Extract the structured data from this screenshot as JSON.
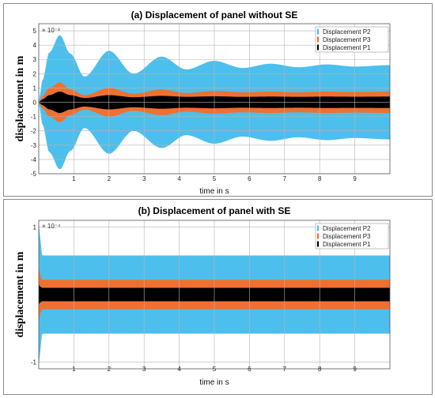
{
  "chart_data": [
    {
      "type": "area",
      "title": "(a) Displacement of panel without SE",
      "xlabel": "time in s",
      "ylabel": "displacement in m",
      "y_exponent_label": "× 10⁻³",
      "xlim": [
        0,
        10
      ],
      "ylim": [
        -5,
        5.5
      ],
      "x_ticks": [
        1,
        2,
        3,
        4,
        5,
        6,
        7,
        8,
        9
      ],
      "y_ticks": [
        -5,
        -4,
        -3,
        -2,
        -1,
        0,
        1,
        2,
        3,
        4,
        5
      ],
      "x_tick_labels": [
        "1",
        "2",
        "3",
        "4",
        "5",
        "6",
        "7",
        "8",
        "9"
      ],
      "y_tick_labels": [
        "-5",
        "-4",
        "-3",
        "-2",
        "-1",
        "0",
        "1",
        "2",
        "3",
        "4",
        "5"
      ],
      "grid": true,
      "legend_position": "top-right",
      "colors": {
        "Displacement P2": "#4dbfec",
        "Displacement P3": "#f07030",
        "Displacement P1": "#000000"
      },
      "series": [
        {
          "name": "Displacement P2",
          "x": [
            0,
            0.1,
            0.3,
            0.6,
            0.9,
            1.3,
            2.0,
            2.7,
            3.5,
            4.2,
            5.0,
            5.8,
            6.6,
            7.4,
            8.2,
            9.0,
            10.0
          ],
          "values": [
            0,
            1.5,
            3.5,
            4.7,
            3.4,
            1.8,
            3.6,
            2.0,
            3.2,
            2.3,
            2.9,
            2.4,
            2.7,
            2.45,
            2.65,
            2.5,
            2.6
          ]
        },
        {
          "name": "Displacement P3",
          "x": [
            0,
            0.1,
            0.3,
            0.6,
            0.9,
            1.3,
            2.0,
            2.7,
            3.5,
            4.2,
            5.0,
            5.8,
            6.6,
            7.4,
            8.2,
            9.0,
            10.0
          ],
          "values": [
            0,
            0.4,
            1.0,
            1.4,
            0.9,
            0.5,
            1.0,
            0.6,
            0.9,
            0.65,
            0.8,
            0.7,
            0.75,
            0.7,
            0.75,
            0.72,
            0.75
          ]
        },
        {
          "name": "Displacement P1",
          "x": [
            0,
            0.1,
            0.3,
            0.6,
            0.9,
            1.3,
            2.0,
            2.7,
            3.5,
            4.2,
            5.0,
            5.8,
            6.6,
            7.4,
            8.2,
            9.0,
            10.0
          ],
          "values": [
            0,
            0.2,
            0.5,
            0.75,
            0.5,
            0.3,
            0.5,
            0.35,
            0.45,
            0.38,
            0.42,
            0.38,
            0.4,
            0.38,
            0.4,
            0.39,
            0.4
          ]
        }
      ]
    },
    {
      "type": "area",
      "title": "(b) Displacement of panel with SE",
      "xlabel": "time in s",
      "ylabel": "displacement in m",
      "y_exponent_label": "× 10⁻⁴",
      "xlim": [
        0,
        10
      ],
      "ylim": [
        -1.1,
        1.1
      ],
      "x_ticks": [
        1,
        2,
        3,
        4,
        5,
        6,
        7,
        8,
        9
      ],
      "y_ticks": [
        -1,
        1
      ],
      "x_tick_labels": [
        "1",
        "2",
        "3",
        "4",
        "5",
        "6",
        "7",
        "8",
        "9"
      ],
      "y_tick_labels": [
        "-1",
        "1"
      ],
      "grid": true,
      "legend_position": "top-right",
      "colors": {
        "Displacement P2": "#4dbfec",
        "Displacement P3": "#f07030",
        "Displacement P1": "#000000"
      },
      "series": [
        {
          "name": "Displacement P2",
          "x": [
            0,
            0.02,
            0.1,
            10.0
          ],
          "values": [
            1.05,
            0.9,
            0.58,
            0.58
          ]
        },
        {
          "name": "Displacement P3",
          "x": [
            0,
            0.02,
            0.1,
            10.0
          ],
          "values": [
            0.4,
            0.3,
            0.22,
            0.22
          ]
        },
        {
          "name": "Displacement P1",
          "x": [
            0,
            0.02,
            0.1,
            10.0
          ],
          "values": [
            0.15,
            0.12,
            0.1,
            0.1
          ]
        }
      ]
    }
  ]
}
